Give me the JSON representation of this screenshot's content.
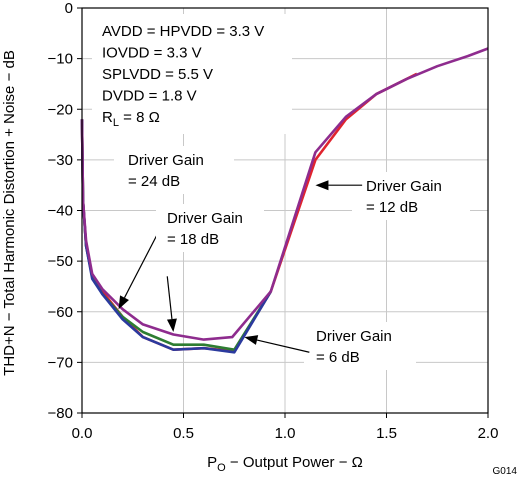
{
  "chart_data": {
    "type": "line",
    "figure_id": "G014",
    "xlabel": {
      "main": "P",
      "sub": "O",
      "rest": " − Output Power − Ω"
    },
    "ylabel": "THD+N − Total Harmonic Distortion + Noise − dB",
    "xlim": [
      0,
      2
    ],
    "ylim": [
      -80,
      0
    ],
    "x_ticks": [
      {
        "value": 0,
        "label": "0.0"
      },
      {
        "value": 0.5,
        "label": "0.5"
      },
      {
        "value": 1.0,
        "label": "1.0"
      },
      {
        "value": 1.5,
        "label": "1.5"
      },
      {
        "value": 2.0,
        "label": "2.0"
      }
    ],
    "y_ticks": [
      {
        "value": 0,
        "label": "0"
      },
      {
        "value": -10,
        "label": "−10"
      },
      {
        "value": -20,
        "label": "−20"
      },
      {
        "value": -30,
        "label": "−30"
      },
      {
        "value": -40,
        "label": "−40"
      },
      {
        "value": -50,
        "label": "−50"
      },
      {
        "value": -60,
        "label": "−60"
      },
      {
        "value": -70,
        "label": "−70"
      },
      {
        "value": -80,
        "label": "−80"
      }
    ],
    "grid": true,
    "conditions": [
      {
        "text": "AVDD = HPVDD = 3.3 V"
      },
      {
        "text": "IOVDD = 3.3 V"
      },
      {
        "text": "SPLVDD = 5.5 V"
      },
      {
        "text": "DVDD = 1.8 V"
      },
      {
        "main": "R",
        "sub": "L",
        "rest": "  = 8 Ω"
      }
    ],
    "series": [
      {
        "color": "#e0242e",
        "x": [
          0.0,
          0.005,
          0.02,
          0.05,
          0.1,
          0.2,
          0.3,
          0.45,
          0.6,
          0.75,
          0.93,
          1.15,
          1.3,
          1.45,
          1.65
        ],
        "y": [
          -22,
          -38,
          -47,
          -53,
          -56,
          -61,
          -65,
          -67.5,
          -67.2,
          -67.8,
          -56,
          -30,
          -22,
          -17,
          -13
        ]
      },
      {
        "color": "#2e7d32",
        "x": [
          0.0,
          0.005,
          0.02,
          0.05,
          0.1,
          0.2,
          0.3,
          0.45,
          0.6,
          0.75,
          0.93
        ],
        "y": [
          -22,
          -38,
          -47,
          -53,
          -56.5,
          -61,
          -64,
          -66.5,
          -66.5,
          -67.5,
          -56
        ]
      },
      {
        "color": "#2b3a9e",
        "x": [
          0.0,
          0.005,
          0.02,
          0.05,
          0.1,
          0.2,
          0.3,
          0.45,
          0.6,
          0.75,
          0.93
        ],
        "y": [
          -22,
          -38,
          -47,
          -53.5,
          -56.5,
          -61.5,
          -65,
          -67.5,
          -67.2,
          -68,
          -56
        ]
      },
      {
        "color": "#8e2c8e",
        "x": [
          0.0,
          0.005,
          0.02,
          0.05,
          0.1,
          0.2,
          0.3,
          0.45,
          0.6,
          0.74,
          0.93,
          1.15,
          1.3,
          1.45,
          1.6,
          1.75,
          1.9,
          2.0
        ],
        "y": [
          -22,
          -38,
          -46,
          -52.5,
          -55.5,
          -59.5,
          -62.5,
          -64.5,
          -65.5,
          -65,
          -56,
          -28.5,
          -21.5,
          -17,
          -14,
          -11.5,
          -9.5,
          -8
        ]
      }
    ],
    "annotations": [
      {
        "lines": [
          "Driver Gain",
          "= 24 dB"
        ],
        "arrow_from": [
          0.38,
          -44
        ],
        "arrow_to": [
          0.18,
          -59.5
        ]
      },
      {
        "lines": [
          "Driver Gain",
          "= 18 dB"
        ],
        "arrow_from": [
          0.42,
          -53
        ],
        "arrow_to": [
          0.45,
          -64
        ]
      },
      {
        "lines": [
          "Driver Gain",
          "= 12 dB"
        ],
        "arrow_from": [
          1.38,
          -35
        ],
        "arrow_to": [
          1.15,
          -35
        ]
      },
      {
        "lines": [
          "Driver Gain",
          "= 6 dB"
        ],
        "arrow_from": [
          1.12,
          -68
        ],
        "arrow_to": [
          0.8,
          -65
        ]
      }
    ]
  }
}
